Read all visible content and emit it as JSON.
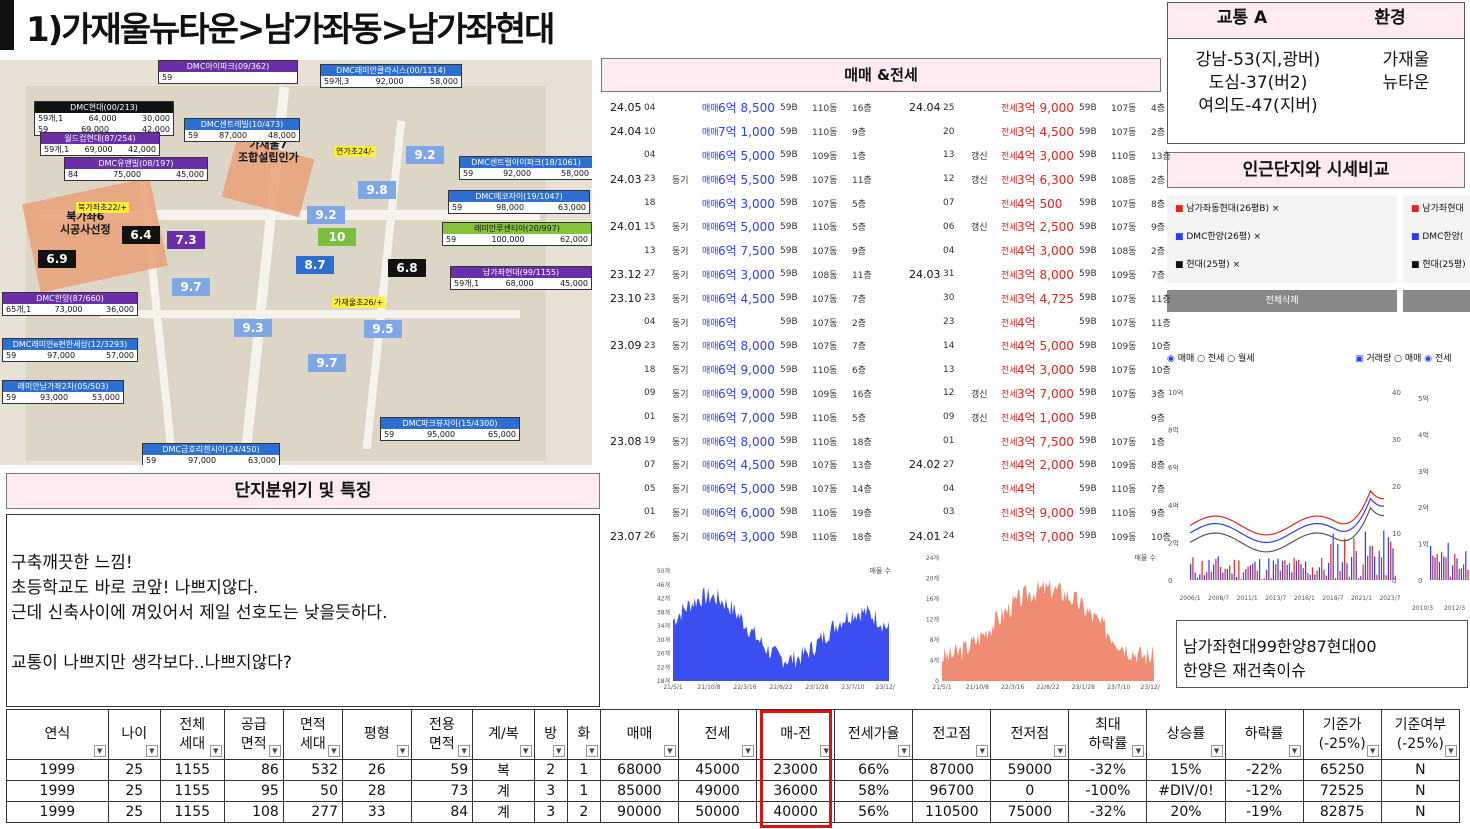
{
  "title": "1)가재울뉴타운>남가좌동>남가좌현대",
  "map": {
    "complexes": [
      {
        "name": "DMC아이파크(09/362)",
        "rows": [
          [
            "59",
            ""
          ]
        ],
        "color": "#6a2fa8"
      },
      {
        "name": "DMC래미안클라시스(00/1114)",
        "rows": [
          [
            "59개,3",
            "92,000",
            "58,000"
          ]
        ],
        "color": "#2c6fd1"
      },
      {
        "name": "DMC현대(00/213)",
        "rows": [
          [
            "59개,1",
            "64,000",
            "30,000"
          ],
          [
            "59",
            "69,000",
            "42,000"
          ]
        ],
        "color": "#111"
      },
      {
        "name": "월드컵현대(87/254)",
        "rows": [
          [
            "59개,1",
            "69,000",
            "42,000"
          ]
        ],
        "color": "#6a2fa8"
      },
      {
        "name": "DMC센트레빌(10/473)",
        "rows": [
          [
            "59",
            "87,000",
            "48,000"
          ]
        ],
        "color": "#2c6fd1"
      },
      {
        "name": "DMC유앤빌(08/197)",
        "rows": [
          [
            "84",
            "75,000",
            "45,000"
          ]
        ],
        "color": "#6a2fa8"
      },
      {
        "name": "DMC센트럴아이파크(18/1061)",
        "rows": [
          [
            "59",
            "92,000",
            "58,000"
          ]
        ],
        "color": "#2c6fd1"
      },
      {
        "name": "DMC에코자이(19/1047)",
        "rows": [
          [
            "59",
            "98,000",
            "63,000"
          ]
        ],
        "color": "#2c6fd1"
      },
      {
        "name": "래미안루센티아(20/997)",
        "rows": [
          [
            "59",
            "100,000",
            "62,000"
          ]
        ],
        "color": "#86c23a"
      },
      {
        "name": "남가좌현대(99/1155)",
        "rows": [
          [
            "59개,1",
            "68,000",
            "45,000"
          ]
        ],
        "color": "#6a2fa8"
      },
      {
        "name": "DMC한양(87/660)",
        "rows": [
          [
            "65개,1",
            "73,000",
            "36,000"
          ]
        ],
        "color": "#6a2fa8"
      },
      {
        "name": "DMC래미안e편한세상(12/3293)",
        "rows": [
          [
            "59",
            "97,000",
            "57,000"
          ]
        ],
        "color": "#2c6fd1"
      },
      {
        "name": "래미안남가좌2차(05/503)",
        "rows": [
          [
            "59",
            "93,000",
            "53,000"
          ]
        ],
        "color": "#2c6fd1"
      },
      {
        "name": "DMC파크뷰자이(15/4300)",
        "rows": [
          [
            "59",
            "95,000",
            "65,000"
          ]
        ],
        "color": "#2c6fd1"
      },
      {
        "name": "DMC금호리첸시아(24/450)",
        "rows": [
          [
            "59",
            "97,000",
            "63,000"
          ]
        ],
        "color": "#2c6fd1"
      }
    ],
    "badges": [
      {
        "v": "9.2",
        "color": "#7fa7e6"
      },
      {
        "v": "9.8",
        "color": "#7fa7e6"
      },
      {
        "v": "9.2",
        "color": "#7fa7e6"
      },
      {
        "v": "10",
        "color": "#7bbf3e"
      },
      {
        "v": "8.7",
        "color": "#2c6fd1"
      },
      {
        "v": "6.8",
        "color": "#111"
      },
      {
        "v": "6.4",
        "color": "#111"
      },
      {
        "v": "7.3",
        "color": "#6a2fa8"
      },
      {
        "v": "6.9",
        "color": "#111"
      },
      {
        "v": "9.7",
        "color": "#7fa7e6"
      },
      {
        "v": "9.3",
        "color": "#7fa7e6"
      },
      {
        "v": "9.5",
        "color": "#7fa7e6"
      },
      {
        "v": "9.7",
        "color": "#7fa7e6"
      }
    ],
    "schools": [
      "연가초24/-",
      "북가좌초22/+",
      "가재울초26/+"
    ],
    "zones": [
      "가재울7\n조합설립인가",
      "북가좌6\n시공사선정"
    ]
  },
  "traffic": {
    "h1": "교통 A",
    "h2": "환경",
    "lines": [
      "강남-53(지,광버)",
      "도심-37(버2)",
      "여의도-47(지버)"
    ],
    "env": [
      "가재울",
      "뉴타운"
    ]
  },
  "nearby": {
    "title": "인근단지와 시세비교",
    "tags1": [
      "남가좌동현대(26평B)",
      "DMC한양(26평)",
      "현대(25평)"
    ],
    "tags2": [
      "남가좌현대",
      "DMC한양(",
      "현대(25평)"
    ],
    "btn": "전체삭제",
    "radio": [
      "매매",
      "전세",
      "월세"
    ],
    "radio2": [
      "거래량",
      "매매",
      "전세"
    ]
  },
  "note": [
    "남가좌현대99한양87현대00",
    "한양은 재건축이슈"
  ],
  "trades": {
    "title": "매매 &전세",
    "sale": [
      [
        "24.05",
        "04",
        "",
        "매매",
        "6억 8,500",
        "59B",
        "110동",
        "16층"
      ],
      [
        "24.04",
        "10",
        "",
        "매매",
        "7억 1,000",
        "59B",
        "110동",
        "9층"
      ],
      [
        "",
        "04",
        "",
        "매매",
        "6억 5,000",
        "59B",
        "109동",
        "1층"
      ],
      [
        "24.03",
        "23",
        "동기",
        "매매",
        "6억 5,500",
        "59B",
        "107동",
        "11층"
      ],
      [
        "",
        "18",
        "",
        "매매",
        "6억 3,000",
        "59B",
        "107동",
        "5층"
      ],
      [
        "24.01",
        "15",
        "동기",
        "매매",
        "6억 5,000",
        "59B",
        "110동",
        "5층"
      ],
      [
        "",
        "13",
        "동기",
        "매매",
        "6억 7,500",
        "59B",
        "107동",
        "9층"
      ],
      [
        "23.12",
        "27",
        "동기",
        "매매",
        "6억 3,000",
        "59B",
        "108동",
        "11층"
      ],
      [
        "23.10",
        "23",
        "동기",
        "매매",
        "6억 4,500",
        "59B",
        "107동",
        "7층"
      ],
      [
        "",
        "04",
        "동기",
        "매매",
        "6억",
        "59B",
        "107동",
        "2층"
      ],
      [
        "23.09",
        "23",
        "동기",
        "매매",
        "6억 8,000",
        "59B",
        "107동",
        "7층"
      ],
      [
        "",
        "18",
        "동기",
        "매매",
        "6억 9,000",
        "59B",
        "110동",
        "6층"
      ],
      [
        "",
        "09",
        "동기",
        "매매",
        "6억 9,000",
        "59B",
        "109동",
        "16층"
      ],
      [
        "",
        "01",
        "동기",
        "매매",
        "6억 7,000",
        "59B",
        "110동",
        "5층"
      ],
      [
        "23.08",
        "19",
        "동기",
        "매매",
        "6억 8,000",
        "59B",
        "110동",
        "18층"
      ],
      [
        "",
        "07",
        "동기",
        "매매",
        "6억 4,500",
        "59B",
        "107동",
        "13층"
      ],
      [
        "",
        "05",
        "동기",
        "매매",
        "6억 5,000",
        "59B",
        "107동",
        "14층"
      ],
      [
        "",
        "01",
        "동기",
        "매매",
        "6억 6,000",
        "59B",
        "110동",
        "19층"
      ],
      [
        "23.07",
        "26",
        "동기",
        "매매",
        "6억 3,000",
        "59B",
        "110동",
        "18층"
      ]
    ],
    "rent": [
      [
        "24.04",
        "25",
        "",
        "전세",
        "3억 9,000",
        "59B",
        "107동",
        "4층"
      ],
      [
        "",
        "20",
        "",
        "전세",
        "3억 4,500",
        "59B",
        "107동",
        "2층"
      ],
      [
        "",
        "13",
        "갱신",
        "전세",
        "4억 3,000",
        "59B",
        "110동",
        "13층"
      ],
      [
        "",
        "12",
        "갱신",
        "전세",
        "3억 6,300",
        "59B",
        "108동",
        "2층"
      ],
      [
        "",
        "07",
        "",
        "전세",
        "4억 500",
        "59B",
        "107동",
        "8층"
      ],
      [
        "",
        "06",
        "갱신",
        "전세",
        "3억 2,500",
        "59B",
        "107동",
        "9층"
      ],
      [
        "",
        "04",
        "",
        "전세",
        "4억 3,000",
        "59B",
        "108동",
        "2층"
      ],
      [
        "24.03",
        "31",
        "",
        "전세",
        "3억 8,000",
        "59B",
        "109동",
        "7층"
      ],
      [
        "",
        "30",
        "",
        "전세",
        "3억 4,725",
        "59B",
        "107동",
        "11층"
      ],
      [
        "",
        "23",
        "",
        "전세",
        "4억",
        "59B",
        "107동",
        "11층"
      ],
      [
        "",
        "14",
        "",
        "전세",
        "4억 5,000",
        "59B",
        "109동",
        "10층"
      ],
      [
        "",
        "13",
        "",
        "전세",
        "4억 3,000",
        "59B",
        "107동",
        "10층"
      ],
      [
        "",
        "12",
        "갱신",
        "전세",
        "3억 7,000",
        "59B",
        "107동",
        "3층"
      ],
      [
        "",
        "09",
        "갱신",
        "전세",
        "4억 1,000",
        "59B",
        "",
        "9층"
      ],
      [
        "",
        "01",
        "",
        "전세",
        "3억 7,500",
        "59B",
        "107동",
        "1층"
      ],
      [
        "24.02",
        "27",
        "",
        "전세",
        "4억 2,000",
        "59B",
        "109동",
        "8층"
      ],
      [
        "",
        "04",
        "",
        "전세",
        "4억",
        "59B",
        "110동",
        "7층"
      ],
      [
        "",
        "03",
        "",
        "전세",
        "3억 9,000",
        "59B",
        "110동",
        "9층"
      ],
      [
        "24.01",
        "24",
        "",
        "전세",
        "3억 7,000",
        "59B",
        "109동",
        "10층"
      ]
    ]
  },
  "chart_sale": {
    "title": "매물 수",
    "yticks": [
      "50개",
      "46개",
      "42개",
      "38개",
      "34개",
      "30개",
      "26개",
      "22개",
      "18개"
    ],
    "xticks": [
      "21/5/1",
      "21/10/8",
      "22/3/16",
      "22/8/22",
      "23/1/28",
      "23/7/10",
      "23/12/21"
    ],
    "color": "#3b4ff0"
  },
  "chart_rent": {
    "title": "매물 수",
    "yticks": [
      "24개",
      "20개",
      "16개",
      "12개",
      "8개",
      "4개",
      "0"
    ],
    "xticks": [
      "21/5/1",
      "21/10/8",
      "22/3/16",
      "22/8/22",
      "23/1/28",
      "23/7/10",
      "23/12/21"
    ],
    "color": "#f08b74"
  },
  "chart_big": {
    "yticks": [
      "10억",
      "8억",
      "6억",
      "4억",
      "2억",
      "0"
    ],
    "y2": [
      "40",
      "30",
      "20",
      "10",
      "0"
    ],
    "y3": [
      "5억",
      "4억",
      "3억",
      "2억",
      "1억",
      "0"
    ],
    "xticks": [
      "2006/1",
      "2008/7",
      "2011/1",
      "2013/7",
      "2016/1",
      "2018/7",
      "2021/1",
      "2023/7"
    ],
    "xticks2": [
      "2010/3",
      "2012/3"
    ]
  },
  "feature": {
    "title": "단지분위기 및 특징",
    "lines": [
      "구축깨끗한 느낌!",
      "초등학교도 바로 코앞! 나쁘지않다.",
      "근데 신축사이에 껴있어서 제일 선호도는 낮을듯하다.",
      "",
      "교통이 나쁘지만 생각보다..나쁘지않다?"
    ]
  },
  "table": {
    "headers": [
      "연식",
      "나이",
      "전체\n세대↓",
      "공급\n면적↓",
      "면적\n세대↓",
      "평형",
      "전용\n면적↓",
      "계/복",
      "방",
      "화",
      "매매",
      "전세",
      "매-전",
      "전세가율",
      "전고점",
      "전저점",
      "최대\n하락률",
      "상승률",
      "하락률",
      "기준가\n(-25%)",
      "기준여부\n(-25%)"
    ],
    "rows": [
      [
        "1999",
        "25",
        "1155",
        "86",
        "532",
        "26",
        "59",
        "복",
        "2",
        "1",
        "68000",
        "45000",
        "23000",
        "66%",
        "87000",
        "59000",
        "-32%",
        "15%",
        "-22%",
        "65250",
        "N"
      ],
      [
        "1999",
        "25",
        "1155",
        "95",
        "50",
        "28",
        "73",
        "계",
        "3",
        "1",
        "85000",
        "49000",
        "36000",
        "58%",
        "96700",
        "0",
        "-100%",
        "#DIV/0!",
        "-12%",
        "72525",
        "N"
      ],
      [
        "1999",
        "25",
        "1155",
        "108",
        "277",
        "33",
        "84",
        "계",
        "3",
        "2",
        "90000",
        "50000",
        "40000",
        "56%",
        "110500",
        "75000",
        "-32%",
        "20%",
        "-19%",
        "82875",
        "N"
      ]
    ]
  }
}
